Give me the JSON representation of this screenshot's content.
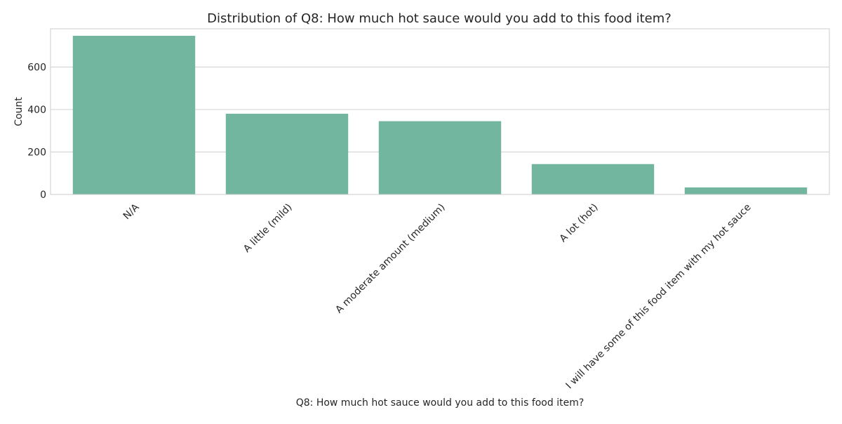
{
  "chart_data": {
    "type": "bar",
    "title": "Distribution of Q8: How much hot sauce would you add to this food item?",
    "xlabel": "Q8: How much hot sauce would you add to this food item?",
    "ylabel": "Count",
    "categories": [
      "N/A",
      "A little (mild)",
      "A moderate amount (medium)",
      "A lot (hot)",
      "I will have some of this food item with my hot sauce"
    ],
    "values": [
      747,
      380,
      345,
      143,
      33
    ],
    "ylim": [
      0,
      780
    ],
    "yticks": [
      "0",
      "200",
      "400",
      "600"
    ],
    "bar_color": "#72b6a0",
    "grid": true
  }
}
